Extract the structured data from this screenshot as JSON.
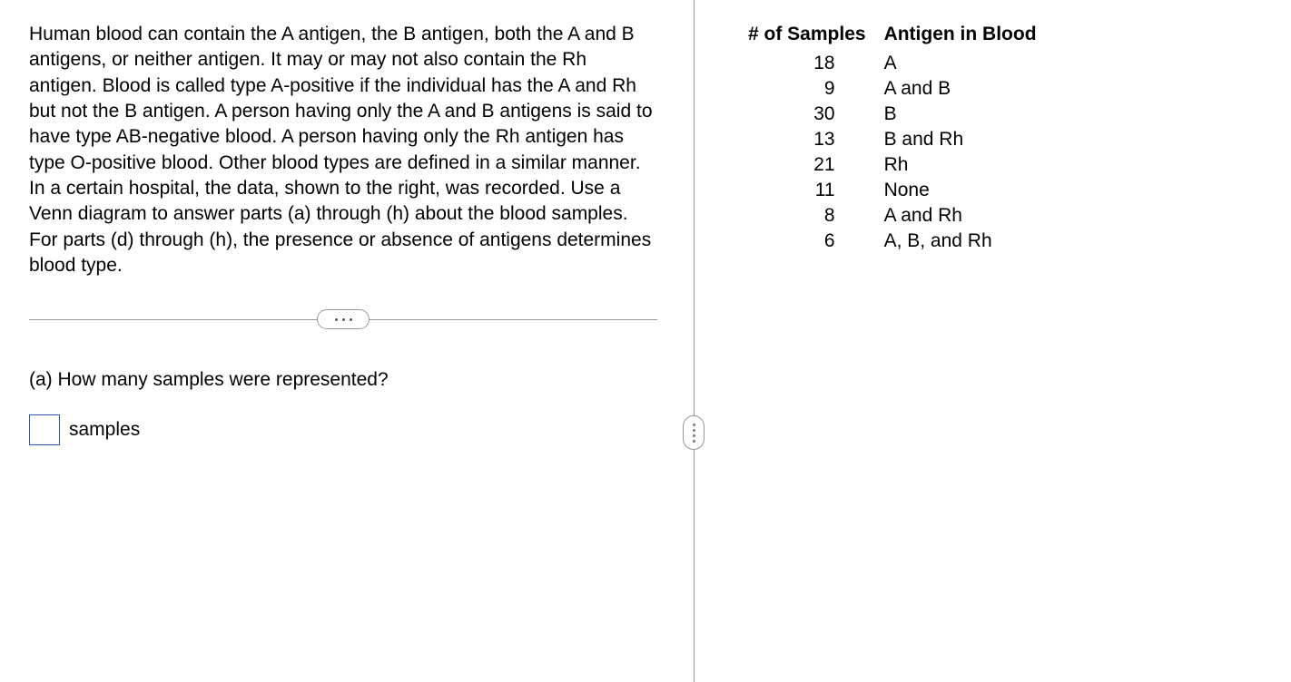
{
  "passage": "Human blood can contain the A antigen, the B antigen, both the A and B antigens, or neither antigen. It may or may not also contain the Rh antigen. Blood is called type A-positive if the individual has the A and Rh but not the B antigen. A person having only the A and B antigens is said to have type AB-negative blood. A person having only the Rh antigen has type O-positive blood. Other blood types are defined in a similar manner. In a certain hospital, the data, shown to the right, was recorded. Use a Venn diagram to answer parts (a) through (h) about the blood samples.  For parts (d) through (h), the presence or absence of antigens determines blood type.",
  "question_a": "(a) How many samples were represented?",
  "answer_unit": "samples",
  "answer_value": "",
  "table": {
    "headers": {
      "col1": "# of Samples",
      "col2": "Antigen in Blood"
    },
    "rows": [
      {
        "n": "18",
        "antigen": "A"
      },
      {
        "n": "9",
        "antigen": "A and B"
      },
      {
        "n": "30",
        "antigen": "B"
      },
      {
        "n": "13",
        "antigen": "B and Rh"
      },
      {
        "n": "21",
        "antigen": "Rh"
      },
      {
        "n": "11",
        "antigen": "None"
      },
      {
        "n": "8",
        "antigen": "A and Rh"
      },
      {
        "n": "6",
        "antigen": "A, B, and Rh"
      }
    ]
  },
  "colors": {
    "text": "#000000",
    "divider": "#979797",
    "input_border": "#2e5aac",
    "background": "#ffffff"
  }
}
